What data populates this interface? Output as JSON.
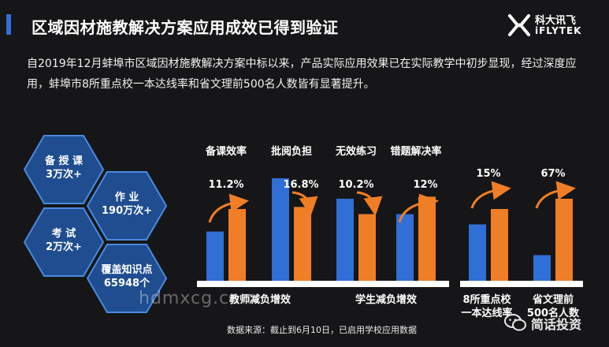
{
  "header": {
    "title": "区域因材施教解决方案应用成效已得到验证",
    "logo_cn": "科大讯飞",
    "logo_en": "iFLYTEK"
  },
  "intro": {
    "line1": "自2019年12月蚌埠市区域因材施教解决方案中标以来，产品实际应用效果已在实际教学中初步显现，经过深度应",
    "line2": "用，蚌埠市8所重点校一本达线率和省文理前500名人数皆有显著提升。"
  },
  "hexagons": [
    {
      "line1": "备 授 课",
      "line2": "3万次+"
    },
    {
      "line1": "作  业",
      "line2": "190万次+"
    },
    {
      "line1": "考  试",
      "line2": "2万次+"
    },
    {
      "line1": "覆盖知识点",
      "line2": "65948个"
    }
  ],
  "colors": {
    "blue": "#2f6fd6",
    "orange": "#f07e26",
    "hex": "#1f4d8f",
    "hex_border": "#4a8ae0"
  },
  "chart_data": {
    "type": "bar",
    "series": [
      {
        "name": "",
        "color": "#2f6fd6"
      },
      {
        "name": "",
        "color": "#f07e26"
      }
    ],
    "groups": [
      {
        "name": "教师减负增效",
        "items": [
          {
            "label": "备课效率",
            "change": "11.2%",
            "trend": "up",
            "values": [
              0.48,
              0.7
            ]
          },
          {
            "label": "批阅负担",
            "change": "16.8%",
            "trend": "down",
            "values": [
              1.0,
              0.72
            ]
          }
        ]
      },
      {
        "name": "学生减负增效",
        "items": [
          {
            "label": "无效练习",
            "change": "10.2%",
            "trend": "down",
            "values": [
              0.8,
              0.65
            ]
          },
          {
            "label": "错题解决率",
            "change": "12%",
            "trend": "up",
            "values": [
              0.65,
              0.82
            ]
          }
        ]
      },
      {
        "name": "",
        "items": [
          {
            "label": "8所重点校一本达线率",
            "change": "15%",
            "trend": "up",
            "values": [
              0.55,
              0.7
            ]
          },
          {
            "label": "省文理前500名人数",
            "change": "67%",
            "trend": "up",
            "values": [
              0.25,
              0.8
            ]
          }
        ]
      }
    ],
    "bottom_labels": {
      "teacher": "教师减负增效",
      "student": "学生减负增效",
      "school_line1": "8所重点校",
      "school_line2": "一本达线率",
      "province_line1": "省文理前",
      "province_line2": "500名人数"
    },
    "ylim": [
      0,
      1
    ]
  },
  "footer": {
    "source": "数据来源：截止到6月10日，已启用学校应用数据",
    "watermark": "hdmxcg.com",
    "wechat": "简话投资"
  }
}
